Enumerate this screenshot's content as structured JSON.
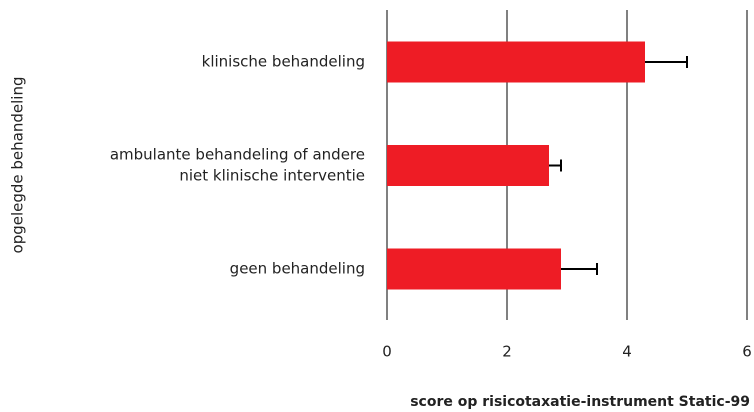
{
  "chart_data": {
    "type": "bar",
    "orientation": "horizontal",
    "categories": [
      [
        "klinische behandeling"
      ],
      [
        "ambulante behandeling of andere",
        "niet klinische interventie"
      ],
      [
        "geen behandeling"
      ]
    ],
    "values": [
      4.3,
      2.7,
      2.9
    ],
    "errors": [
      0.7,
      0.2,
      0.6
    ],
    "color": "#ee1c25",
    "xlim": [
      0,
      6
    ],
    "xticks": [
      0,
      2,
      4,
      6
    ],
    "grid": true,
    "xlabel": "score op risicotaxatie-instrument Static-99",
    "ylabel": "opgelegde behandeling"
  }
}
